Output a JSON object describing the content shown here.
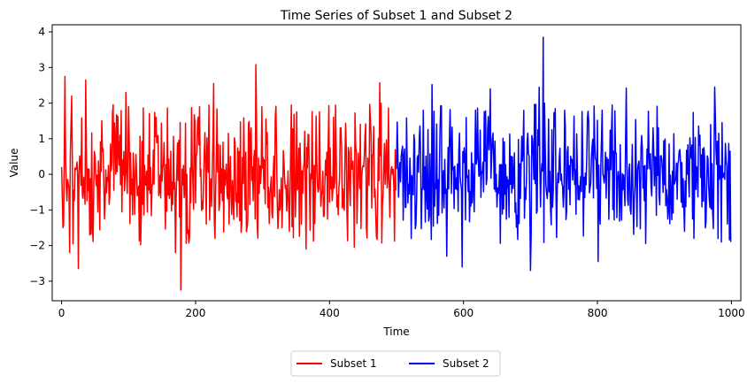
{
  "chart_data": {
    "type": "line",
    "title": "Time Series of Subset 1 and Subset 2",
    "xlabel": "Time",
    "ylabel": "Value",
    "xlim": [
      -14,
      1014
    ],
    "ylim": [
      -3.55,
      4.2
    ],
    "xticks": [
      0,
      200,
      400,
      600,
      800,
      1000
    ],
    "yticks": [
      -3,
      -2,
      -1,
      0,
      1,
      2,
      3,
      4
    ],
    "grid": false,
    "legend_position": "bottom-center",
    "series": [
      {
        "name": "Subset 1",
        "color": "#ff0000",
        "x_start": 0,
        "x_end": 499,
        "approx_mean": 0.0,
        "approx_std": 1.0,
        "extremes": [
          {
            "x": 5,
            "y": 2.75
          },
          {
            "x": 15,
            "y": 2.2
          },
          {
            "x": 12,
            "y": -2.2
          },
          {
            "x": 25,
            "y": -2.65
          },
          {
            "x": 36,
            "y": 2.65
          },
          {
            "x": 96,
            "y": 2.3
          },
          {
            "x": 170,
            "y": -2.2
          },
          {
            "x": 178,
            "y": -3.25
          },
          {
            "x": 227,
            "y": 2.55
          },
          {
            "x": 290,
            "y": 3.08
          },
          {
            "x": 365,
            "y": -2.1
          },
          {
            "x": 437,
            "y": -2.05
          },
          {
            "x": 475,
            "y": 2.57
          },
          {
            "x": 478,
            "y": -1.93
          }
        ]
      },
      {
        "name": "Subset 2",
        "color": "#0000ff",
        "x_start": 500,
        "x_end": 999,
        "approx_mean": 0.0,
        "approx_std": 1.0,
        "extremes": [
          {
            "x": 553,
            "y": 2.52
          },
          {
            "x": 575,
            "y": -2.3
          },
          {
            "x": 598,
            "y": -2.6
          },
          {
            "x": 640,
            "y": 2.4
          },
          {
            "x": 700,
            "y": -2.7
          },
          {
            "x": 713,
            "y": 2.45
          },
          {
            "x": 719,
            "y": 3.85
          },
          {
            "x": 801,
            "y": -2.45
          },
          {
            "x": 843,
            "y": 2.42
          },
          {
            "x": 975,
            "y": 2.45
          },
          {
            "x": 985,
            "y": -1.9
          }
        ]
      }
    ]
  }
}
